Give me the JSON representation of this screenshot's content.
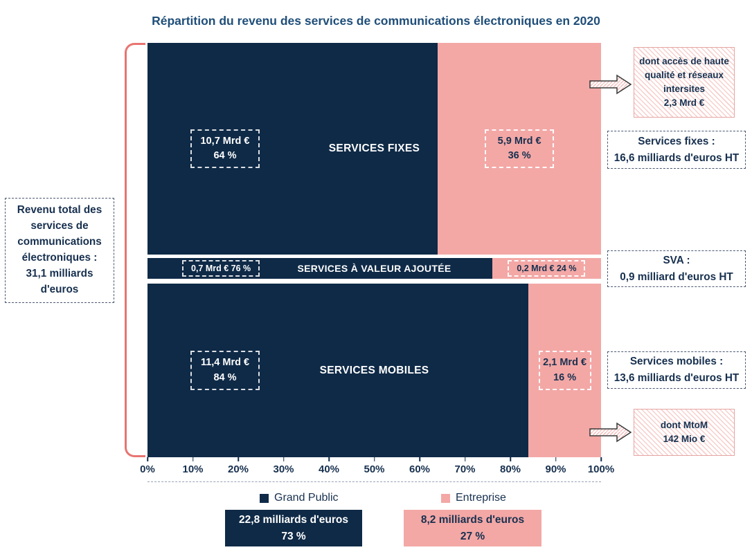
{
  "title": "Répartition du revenu des services de communications électroniques en 2020",
  "colors": {
    "grand_public": "#0f2a47",
    "entreprise": "#f3a8a6",
    "bracket": "#e87470",
    "title": "#1f4e79",
    "text": "#17304f"
  },
  "chart_data": {
    "type": "bar",
    "variant": "horizontal-stacked-100percent",
    "title": "Répartition du revenu des services de communications électroniques en 2020",
    "categories": [
      "SERVICES FIXES",
      "SERVICES À VALEUR AJOUTÉE",
      "SERVICES MOBILES"
    ],
    "series": [
      {
        "name": "Grand Public",
        "color": "#0f2a47",
        "values_mrd_eur": [
          10.7,
          0.7,
          11.4
        ],
        "percents": [
          64,
          76,
          84
        ]
      },
      {
        "name": "Entreprise",
        "color": "#f3a8a6",
        "values_mrd_eur": [
          5.9,
          0.2,
          2.1
        ],
        "percents": [
          36,
          24,
          16
        ]
      }
    ],
    "category_totals": [
      "Services fixes : 16,6 milliards d'euros HT",
      "SVA : 0,9 milliard d'euros HT",
      "Services mobiles : 13,6 milliards d'euros HT"
    ],
    "grand_total": "Revenu total des services de communications électroniques : 31,1 milliards d'euros",
    "series_totals": [
      {
        "name": "Grand Public",
        "amount": "22,8 milliards d'euros",
        "percent": "73 %"
      },
      {
        "name": "Entreprise",
        "amount": "8,2 milliards d'euros",
        "percent": "27 %"
      }
    ],
    "annotations": [
      "dont accès de haute qualité et réseaux intersites 2,3 Mrd €",
      "dont MtoM 142 Mio €"
    ],
    "x_ticks": [
      "0%",
      "10%",
      "20%",
      "30%",
      "40%",
      "50%",
      "60%",
      "70%",
      "80%",
      "90%",
      "100%"
    ],
    "x_range": [
      0,
      100
    ],
    "legend_position": "bottom"
  },
  "bars": [
    {
      "category": "SERVICES FIXES",
      "gp_amount": "10,7 Mrd €",
      "gp_percent": "64 %",
      "gp_width": 64,
      "ent_amount": "5,9 Mrd €",
      "ent_percent": "36 %"
    },
    {
      "category": "SERVICES À VALEUR AJOUTÉE",
      "gp_label": "0,7 Mrd € 76 %",
      "gp_width": 76,
      "ent_label": "0,2 Mrd € 24 %"
    },
    {
      "category": "SERVICES MOBILES",
      "gp_amount": "11,4 Mrd €",
      "gp_percent": "84 %",
      "gp_width": 84,
      "ent_amount": "2,1 Mrd €",
      "ent_percent": "16 %"
    }
  ],
  "left_annotation": {
    "lines": [
      "Revenu total des",
      "services de",
      "communications",
      "électroniques :",
      "31,1 milliards",
      "d'euros"
    ]
  },
  "right_annotations": {
    "fixes_callout": {
      "lines": [
        "dont accès de haute",
        "qualité et réseaux",
        "intersites",
        "2,3 Mrd €"
      ]
    },
    "fixes_total": {
      "lines": [
        "Services fixes :",
        "16,6 milliards d'euros HT"
      ]
    },
    "sva_total": {
      "lines": [
        "SVA :",
        "0,9 milliard d'euros HT"
      ]
    },
    "mobiles_total": {
      "lines": [
        "Services mobiles :",
        "13,6 milliards d'euros HT"
      ]
    },
    "mobiles_callout": {
      "lines": [
        "dont MtoM",
        "142 Mio €"
      ]
    }
  },
  "legend": {
    "grand_public": "Grand Public",
    "entreprise": "Entreprise"
  },
  "totals": {
    "grand_public": {
      "amount": "22,8 milliards d'euros",
      "percent": "73 %"
    },
    "entreprise": {
      "amount": "8,2 milliards d'euros",
      "percent": "27 %"
    }
  }
}
